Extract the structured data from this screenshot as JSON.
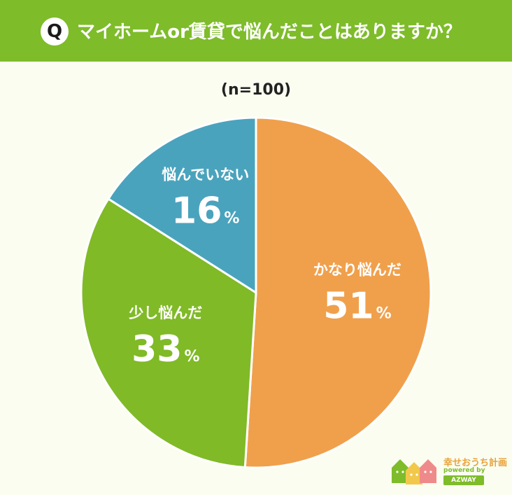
{
  "header": {
    "badge": "Q",
    "question": "マイホームor賃貸で悩んだことはありますか？"
  },
  "sample_label": "(n=100)",
  "colors": {
    "header": "#7ebc2a",
    "slice_1": "#f0a04b",
    "slice_2": "#80ba27",
    "slice_3": "#4aa3bd",
    "background": "#fafdf0"
  },
  "chart_data": {
    "type": "pie",
    "title": "",
    "start_angle_deg": 0,
    "direction": "clockwise",
    "unit": "%",
    "slices": [
      {
        "label": "かなり悩んだ",
        "value": 51
      },
      {
        "label": "少し悩んだ",
        "value": 33
      },
      {
        "label": "悩んでいない",
        "value": 16
      }
    ]
  },
  "logo": {
    "name": "幸せおうち計画",
    "sub": "powered by",
    "brand": "AZWAY"
  }
}
